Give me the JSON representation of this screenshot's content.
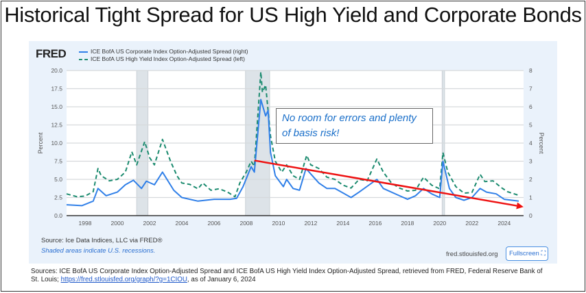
{
  "title": "Historical Tight Spread for US High Yield and Corporate Bonds",
  "fred": {
    "logo": "FRED",
    "source": "Source: Ice Data Indices, LLC via FRED®",
    "recession_note": "Shaded areas indicate U.S. recessions.",
    "site": "fred.stlouisfed.org",
    "fullscreen_label": "Fullscreen",
    "fullscreen_icon": "expand-icon"
  },
  "footnote": {
    "text1": "Sources: ICE BofA US Corporate Index Option-Adjusted Spread and ICE BofA US High Yield Index Option-Adjusted Spread, retrieved from FRED, Federal Reserve Bank of St. Louis; ",
    "link": "https://fred.stlouisfed.org/graph/?g=1CIOU",
    "text2": ", as of January 6, 2024"
  },
  "annotation": "No room for errors and plenty of basis risk!",
  "colors": {
    "ig": "#2f7fe8",
    "hy": "#1a8a6e",
    "trend": "#ee1111",
    "recession": "#dde3e8",
    "card": "#eaf2fb"
  },
  "chart_data": {
    "type": "line",
    "xlabel": "",
    "ylabel_left": "Percent",
    "ylabel_right": "Percent",
    "xlim": [
      1996.85,
      2025.2
    ],
    "ylim_left": [
      0,
      20
    ],
    "ylim_right": [
      0,
      8
    ],
    "x_ticks": [
      "1998",
      "2000",
      "2002",
      "2004",
      "2006",
      "2008",
      "2010",
      "2012",
      "2014",
      "2016",
      "2018",
      "2020",
      "2022",
      "2024"
    ],
    "y_ticks_left": [
      "0.0",
      "2.5",
      "5.0",
      "7.5",
      "10.0",
      "12.5",
      "15.0",
      "17.5",
      "20.0"
    ],
    "y_ticks_right": [
      "0",
      "1",
      "2",
      "3",
      "4",
      "5",
      "6",
      "7",
      "8"
    ],
    "recessions": [
      [
        2001.2,
        2001.9
      ],
      [
        2007.95,
        2009.45
      ],
      [
        2020.15,
        2020.3
      ]
    ],
    "series": [
      {
        "name": "ICE BofA US Corporate Index Option-Adjusted Spread (right)",
        "axis": "right",
        "style": "solid",
        "points": [
          [
            1996.85,
            0.6
          ],
          [
            1997.8,
            0.55
          ],
          [
            1998.5,
            0.8
          ],
          [
            1998.8,
            1.5
          ],
          [
            1999.3,
            1.1
          ],
          [
            2000,
            1.3
          ],
          [
            2000.5,
            1.7
          ],
          [
            2001.0,
            1.95
          ],
          [
            2001.5,
            1.5
          ],
          [
            2001.8,
            1.9
          ],
          [
            2002.3,
            1.7
          ],
          [
            2002.8,
            2.4
          ],
          [
            2003.5,
            1.4
          ],
          [
            2004,
            1.0
          ],
          [
            2005,
            0.8
          ],
          [
            2006,
            0.9
          ],
          [
            2007,
            0.9
          ],
          [
            2007.4,
            0.95
          ],
          [
            2007.8,
            1.6
          ],
          [
            2008.3,
            2.7
          ],
          [
            2008.5,
            2.4
          ],
          [
            2008.9,
            6.4
          ],
          [
            2009.2,
            5.5
          ],
          [
            2009.35,
            5.8
          ],
          [
            2009.5,
            3.5
          ],
          [
            2009.8,
            2.2
          ],
          [
            2010.3,
            1.6
          ],
          [
            2010.5,
            2.0
          ],
          [
            2010.9,
            1.5
          ],
          [
            2011.3,
            1.4
          ],
          [
            2011.7,
            2.6
          ],
          [
            2012,
            2.3
          ],
          [
            2012.5,
            1.8
          ],
          [
            2013,
            1.5
          ],
          [
            2013.5,
            1.5
          ],
          [
            2014.5,
            1.0
          ],
          [
            2015,
            1.3
          ],
          [
            2016.1,
            2.0
          ],
          [
            2016.5,
            1.5
          ],
          [
            2017.5,
            1.1
          ],
          [
            2018,
            0.9
          ],
          [
            2018.5,
            1.1
          ],
          [
            2019.0,
            1.5
          ],
          [
            2019.5,
            1.2
          ],
          [
            2020.0,
            1.0
          ],
          [
            2020.2,
            3.0
          ],
          [
            2020.6,
            1.5
          ],
          [
            2021,
            1.0
          ],
          [
            2021.5,
            0.85
          ],
          [
            2022.0,
            1.0
          ],
          [
            2022.5,
            1.5
          ],
          [
            2022.9,
            1.3
          ],
          [
            2023.5,
            1.2
          ],
          [
            2024,
            0.9
          ],
          [
            2024.9,
            0.8
          ]
        ]
      },
      {
        "name": "ICE BofA US High Yield Index Option-Adjusted Spread (left)",
        "axis": "left",
        "style": "dashed",
        "points": [
          [
            1996.85,
            3.0
          ],
          [
            1997.5,
            2.6
          ],
          [
            1998.0,
            2.7
          ],
          [
            1998.5,
            3.3
          ],
          [
            1998.8,
            6.5
          ],
          [
            1999,
            5.5
          ],
          [
            1999.5,
            4.8
          ],
          [
            2000,
            5.0
          ],
          [
            2000.5,
            6.0
          ],
          [
            2000.9,
            8.8
          ],
          [
            2001.2,
            7.0
          ],
          [
            2001.7,
            10.2
          ],
          [
            2002.0,
            8.0
          ],
          [
            2002.3,
            7.0
          ],
          [
            2002.8,
            10.5
          ],
          [
            2003.3,
            7.5
          ],
          [
            2003.7,
            5.5
          ],
          [
            2004,
            4.5
          ],
          [
            2004.5,
            4.3
          ],
          [
            2005,
            3.7
          ],
          [
            2005.3,
            4.5
          ],
          [
            2005.8,
            3.5
          ],
          [
            2006.3,
            3.7
          ],
          [
            2006.8,
            3.3
          ],
          [
            2007.3,
            2.6
          ],
          [
            2007.6,
            4.5
          ],
          [
            2008.0,
            6.0
          ],
          [
            2008.3,
            7.5
          ],
          [
            2008.5,
            6.8
          ],
          [
            2008.9,
            19.8
          ],
          [
            2009.0,
            17.0
          ],
          [
            2009.2,
            18.0
          ],
          [
            2009.5,
            11
          ],
          [
            2009.8,
            7.5
          ],
          [
            2010.2,
            6.0
          ],
          [
            2010.5,
            7.0
          ],
          [
            2010.9,
            5.5
          ],
          [
            2011.3,
            5.0
          ],
          [
            2011.75,
            8.3
          ],
          [
            2012.0,
            7.0
          ],
          [
            2012.5,
            6.5
          ],
          [
            2013,
            5.3
          ],
          [
            2013.5,
            5.0
          ],
          [
            2014,
            4.2
          ],
          [
            2014.5,
            3.8
          ],
          [
            2015,
            5.0
          ],
          [
            2015.5,
            4.8
          ],
          [
            2016.1,
            7.8
          ],
          [
            2016.5,
            6.0
          ],
          [
            2017,
            4.5
          ],
          [
            2017.5,
            3.8
          ],
          [
            2018,
            3.4
          ],
          [
            2018.5,
            3.5
          ],
          [
            2019.0,
            5.3
          ],
          [
            2019.5,
            4.2
          ],
          [
            2020.0,
            3.7
          ],
          [
            2020.2,
            8.7
          ],
          [
            2020.5,
            6.0
          ],
          [
            2021,
            4.0
          ],
          [
            2021.5,
            3.1
          ],
          [
            2022,
            3.2
          ],
          [
            2022.5,
            5.7
          ],
          [
            2022.8,
            4.7
          ],
          [
            2023.3,
            4.8
          ],
          [
            2023.8,
            3.9
          ],
          [
            2024.2,
            3.3
          ],
          [
            2024.9,
            2.8
          ]
        ]
      }
    ],
    "trend_arrow": {
      "from": [
        2008.5,
        7.6
      ],
      "to": [
        2025.2,
        1.2
      ],
      "axis": "left"
    }
  }
}
